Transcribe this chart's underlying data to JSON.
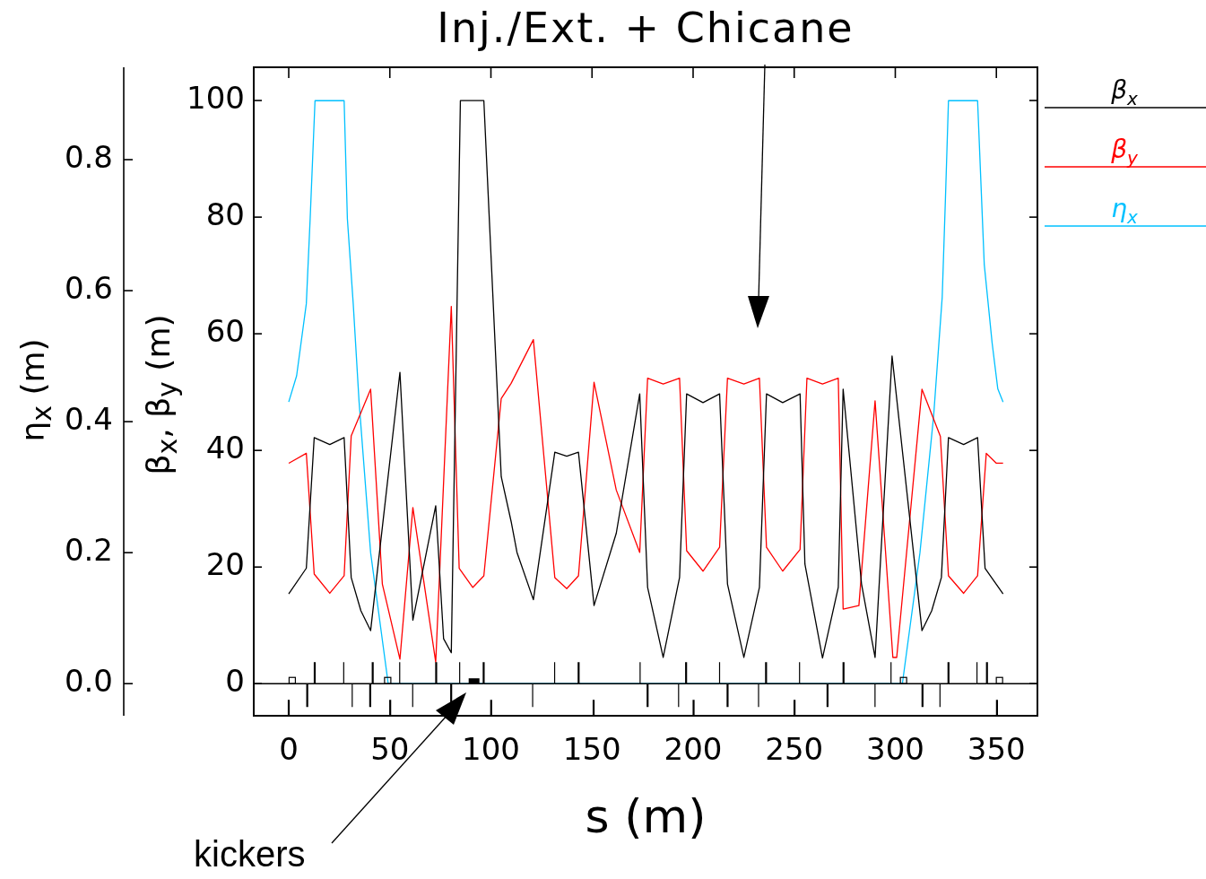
{
  "chart_data": {
    "type": "line",
    "title": "Inj./Ext. + Chicane",
    "xlabel": "s (m)",
    "ylabel": "β$_{x}$, β$_{y}$ (m)",
    "y2label": "η$_{x}$ (m)",
    "xlim": [
      -17.3,
      370.3
    ],
    "xticks": [
      0,
      50,
      100,
      150,
      200,
      250,
      300,
      350
    ],
    "ylim": [
      -5.5,
      105.7
    ],
    "yticks": [
      0,
      20,
      40,
      60,
      80,
      100
    ],
    "y2lim": [
      -0.049,
      0.941
    ],
    "y2ticks": [
      {
        "value": 0,
        "label": "0.0"
      },
      0.2,
      0.4,
      0.6,
      0.8
    ],
    "grid": false,
    "legend": "top right",
    "marker": "none",
    "line_style": "solid",
    "annotations": [
      "kickers"
    ],
    "series": [
      {
        "name": "β$_{x}$",
        "color": "#000000",
        "x": [
          0,
          8.7,
          12.6,
          20.3,
          27.4,
          30.9,
          35.7,
          40.5,
          55,
          61.4,
          72.7,
          76.6,
          80.4,
          84.9,
          96.5,
          105.1,
          110,
          112.9,
          121,
          131.6,
          137.5,
          143.3,
          151,
          162,
          173.6,
          177.5,
          185.2,
          193.3,
          196.8,
          204.9,
          213.1,
          217,
          225.1,
          232.8,
          236.3,
          244.3,
          252.9,
          255.3,
          264,
          271.8,
          274.2,
          283.3,
          290,
          298.4,
          313.2,
          318,
          322.8,
          326.3,
          333.8,
          340.7,
          344.4,
          353.3
        ],
        "values": [
          15.4,
          19.8,
          42.2,
          41,
          42.2,
          18.2,
          12.5,
          9.1,
          53.4,
          10.9,
          30.5,
          7.7,
          5.3,
          100,
          100,
          35.5,
          27.8,
          22.5,
          14.4,
          39.7,
          39,
          39.7,
          13.4,
          25.8,
          49.7,
          16.5,
          4.5,
          18.2,
          49.7,
          48.2,
          49.7,
          17.1,
          4.5,
          16.5,
          49.7,
          48.2,
          49.7,
          20.5,
          4.4,
          16.5,
          50.5,
          17.1,
          4.5,
          56.2,
          9.1,
          12.5,
          18.2,
          42.2,
          41,
          42.2,
          19.8,
          15.4
        ]
      },
      {
        "name": "β$_{y}$",
        "color": "#ff0000",
        "x": [
          0,
          8.7,
          12.6,
          20.3,
          27.4,
          30.9,
          40.5,
          46.3,
          55,
          61.4,
          72.7,
          80.4,
          84.3,
          91,
          96.5,
          105.1,
          110,
          121,
          131.6,
          137.5,
          143.3,
          151,
          162,
          173.6,
          177.5,
          185.2,
          193.3,
          196.8,
          204.9,
          213.1,
          217,
          225.1,
          232.8,
          236.3,
          244.3,
          252.9,
          256.3,
          264,
          271.8,
          274.2,
          282,
          290,
          298.8,
          300.7,
          313.2,
          322.3,
          326.3,
          333.8,
          340.7,
          345,
          350,
          353.3
        ],
        "values": [
          37.8,
          39.5,
          18.8,
          15.5,
          18.5,
          42.5,
          50.5,
          17.1,
          4.2,
          30.2,
          3.7,
          64.7,
          19.8,
          16.5,
          18.5,
          48.9,
          51.5,
          59,
          18.2,
          16.3,
          18.5,
          51.7,
          33.2,
          22.5,
          52.4,
          51.4,
          52.4,
          22.8,
          19.3,
          23.4,
          52.4,
          51.4,
          52.4,
          23.4,
          19.3,
          23,
          52.4,
          51.4,
          52.4,
          12.8,
          13.4,
          48.5,
          4.5,
          4.5,
          50.5,
          42.4,
          18.5,
          15.5,
          18.5,
          39.5,
          37.8,
          37.8
        ]
      },
      {
        "name": "η$_{x}$",
        "color": "#00c0ff",
        "axis": "y2",
        "x": [
          0,
          3.9,
          8.7,
          10.6,
          13,
          27.4,
          29,
          31.9,
          34.8,
          40.5,
          49.2,
          303.5,
          312.2,
          319,
          323.2,
          324.8,
          326.3,
          340.7,
          344,
          347.9,
          350.7,
          353.3
        ],
        "values": [
          0.43,
          0.47,
          0.58,
          0.71,
          0.89,
          0.89,
          0.71,
          0.58,
          0.43,
          0.2,
          0,
          0,
          0.2,
          0.41,
          0.59,
          0.74,
          0.89,
          0.89,
          0.64,
          0.52,
          0.45,
          0.43
        ]
      }
    ]
  }
}
